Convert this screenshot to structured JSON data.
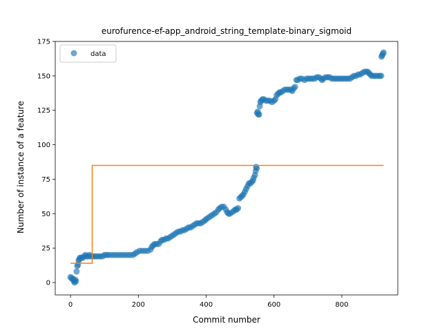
{
  "chart_data": {
    "type": "scatter",
    "title": "eurofurence-ef-app_android_string_template-binary_sigmoid",
    "xlabel": "Commit number",
    "ylabel": "Number of instance of a feature",
    "xlim": [
      -45,
      965
    ],
    "ylim": [
      -9,
      175
    ],
    "xticks": [
      0,
      200,
      400,
      600,
      800
    ],
    "yticks": [
      0,
      25,
      50,
      75,
      100,
      125,
      150,
      175
    ],
    "grid": false,
    "legend": {
      "position": "top-left",
      "entries": [
        "data"
      ]
    },
    "series": [
      {
        "name": "data",
        "kind": "scatter",
        "color": "#1f77b4",
        "points": [
          [
            0,
            4
          ],
          [
            3,
            3
          ],
          [
            6,
            3
          ],
          [
            8,
            2
          ],
          [
            10,
            1
          ],
          [
            12,
            0
          ],
          [
            14,
            2
          ],
          [
            16,
            1
          ],
          [
            18,
            8
          ],
          [
            20,
            12
          ],
          [
            22,
            13
          ],
          [
            24,
            16
          ],
          [
            26,
            17
          ],
          [
            28,
            18
          ],
          [
            32,
            18
          ],
          [
            36,
            18
          ],
          [
            40,
            19
          ],
          [
            44,
            20
          ],
          [
            48,
            19
          ],
          [
            52,
            19
          ],
          [
            56,
            20
          ],
          [
            60,
            19
          ],
          [
            64,
            19
          ],
          [
            70,
            19
          ],
          [
            76,
            19
          ],
          [
            82,
            19
          ],
          [
            88,
            19
          ],
          [
            94,
            19
          ],
          [
            100,
            20
          ],
          [
            106,
            20
          ],
          [
            112,
            20
          ],
          [
            120,
            20
          ],
          [
            128,
            20
          ],
          [
            136,
            20
          ],
          [
            144,
            20
          ],
          [
            152,
            20
          ],
          [
            160,
            20
          ],
          [
            168,
            20
          ],
          [
            176,
            20
          ],
          [
            184,
            20
          ],
          [
            190,
            21
          ],
          [
            196,
            22
          ],
          [
            204,
            23
          ],
          [
            212,
            23
          ],
          [
            220,
            23
          ],
          [
            228,
            23
          ],
          [
            236,
            24
          ],
          [
            240,
            26
          ],
          [
            244,
            27
          ],
          [
            248,
            28
          ],
          [
            254,
            28
          ],
          [
            260,
            28
          ],
          [
            266,
            30
          ],
          [
            270,
            31
          ],
          [
            276,
            31
          ],
          [
            282,
            32
          ],
          [
            288,
            32
          ],
          [
            294,
            33
          ],
          [
            300,
            34
          ],
          [
            306,
            35
          ],
          [
            312,
            36
          ],
          [
            318,
            37
          ],
          [
            324,
            37
          ],
          [
            330,
            38
          ],
          [
            336,
            38
          ],
          [
            342,
            39
          ],
          [
            348,
            40
          ],
          [
            354,
            40
          ],
          [
            360,
            41
          ],
          [
            366,
            42
          ],
          [
            372,
            43
          ],
          [
            378,
            43
          ],
          [
            384,
            43
          ],
          [
            390,
            44
          ],
          [
            396,
            45
          ],
          [
            400,
            46
          ],
          [
            406,
            47
          ],
          [
            412,
            48
          ],
          [
            418,
            49
          ],
          [
            424,
            50
          ],
          [
            430,
            51
          ],
          [
            436,
            53
          ],
          [
            440,
            54
          ],
          [
            446,
            55
          ],
          [
            452,
            55
          ],
          [
            458,
            53
          ],
          [
            462,
            51
          ],
          [
            466,
            50
          ],
          [
            470,
            50
          ],
          [
            476,
            51
          ],
          [
            482,
            52
          ],
          [
            486,
            53
          ],
          [
            490,
            53
          ],
          [
            494,
            54
          ],
          [
            498,
            61
          ],
          [
            502,
            62
          ],
          [
            506,
            63
          ],
          [
            510,
            64
          ],
          [
            514,
            66
          ],
          [
            518,
            68
          ],
          [
            522,
            70
          ],
          [
            526,
            72
          ],
          [
            530,
            72
          ],
          [
            534,
            73
          ],
          [
            538,
            74
          ],
          [
            540,
            76
          ],
          [
            544,
            78
          ],
          [
            546,
            81
          ],
          [
            547,
            84
          ],
          [
            549,
            83
          ],
          [
            550,
            123
          ],
          [
            552,
            124
          ],
          [
            554,
            122
          ],
          [
            556,
            122
          ],
          [
            558,
            128
          ],
          [
            560,
            131
          ],
          [
            562,
            132
          ],
          [
            566,
            133
          ],
          [
            570,
            133
          ],
          [
            576,
            132
          ],
          [
            582,
            132
          ],
          [
            588,
            132
          ],
          [
            594,
            131
          ],
          [
            600,
            132
          ],
          [
            604,
            133
          ],
          [
            608,
            136
          ],
          [
            612,
            137
          ],
          [
            616,
            138
          ],
          [
            620,
            138
          ],
          [
            626,
            139
          ],
          [
            632,
            140
          ],
          [
            638,
            140
          ],
          [
            644,
            140
          ],
          [
            650,
            140
          ],
          [
            654,
            139
          ],
          [
            658,
            141
          ],
          [
            662,
            142
          ],
          [
            666,
            147
          ],
          [
            670,
            147
          ],
          [
            676,
            148
          ],
          [
            682,
            148
          ],
          [
            690,
            147
          ],
          [
            696,
            148
          ],
          [
            702,
            148
          ],
          [
            708,
            148
          ],
          [
            714,
            148
          ],
          [
            720,
            148
          ],
          [
            726,
            149
          ],
          [
            732,
            149
          ],
          [
            738,
            148
          ],
          [
            742,
            147
          ],
          [
            746,
            148
          ],
          [
            752,
            149
          ],
          [
            758,
            149
          ],
          [
            764,
            149
          ],
          [
            770,
            148
          ],
          [
            776,
            148
          ],
          [
            782,
            148
          ],
          [
            788,
            148
          ],
          [
            794,
            148
          ],
          [
            800,
            148
          ],
          [
            806,
            148
          ],
          [
            812,
            148
          ],
          [
            818,
            148
          ],
          [
            824,
            148
          ],
          [
            830,
            149
          ],
          [
            836,
            150
          ],
          [
            842,
            150
          ],
          [
            848,
            151
          ],
          [
            854,
            151
          ],
          [
            860,
            152
          ],
          [
            866,
            153
          ],
          [
            872,
            153
          ],
          [
            876,
            153
          ],
          [
            880,
            152
          ],
          [
            884,
            151
          ],
          [
            888,
            150
          ],
          [
            894,
            150
          ],
          [
            900,
            150
          ],
          [
            906,
            150
          ],
          [
            912,
            150
          ],
          [
            916,
            150
          ],
          [
            917,
            164
          ],
          [
            919,
            165
          ],
          [
            921,
            166
          ],
          [
            923,
            167
          ]
        ]
      },
      {
        "name": "",
        "kind": "line",
        "color": "#ff7f0e",
        "points": [
          [
            0,
            14
          ],
          [
            64,
            14
          ],
          [
            64,
            85
          ],
          [
            923,
            85
          ]
        ]
      }
    ]
  }
}
